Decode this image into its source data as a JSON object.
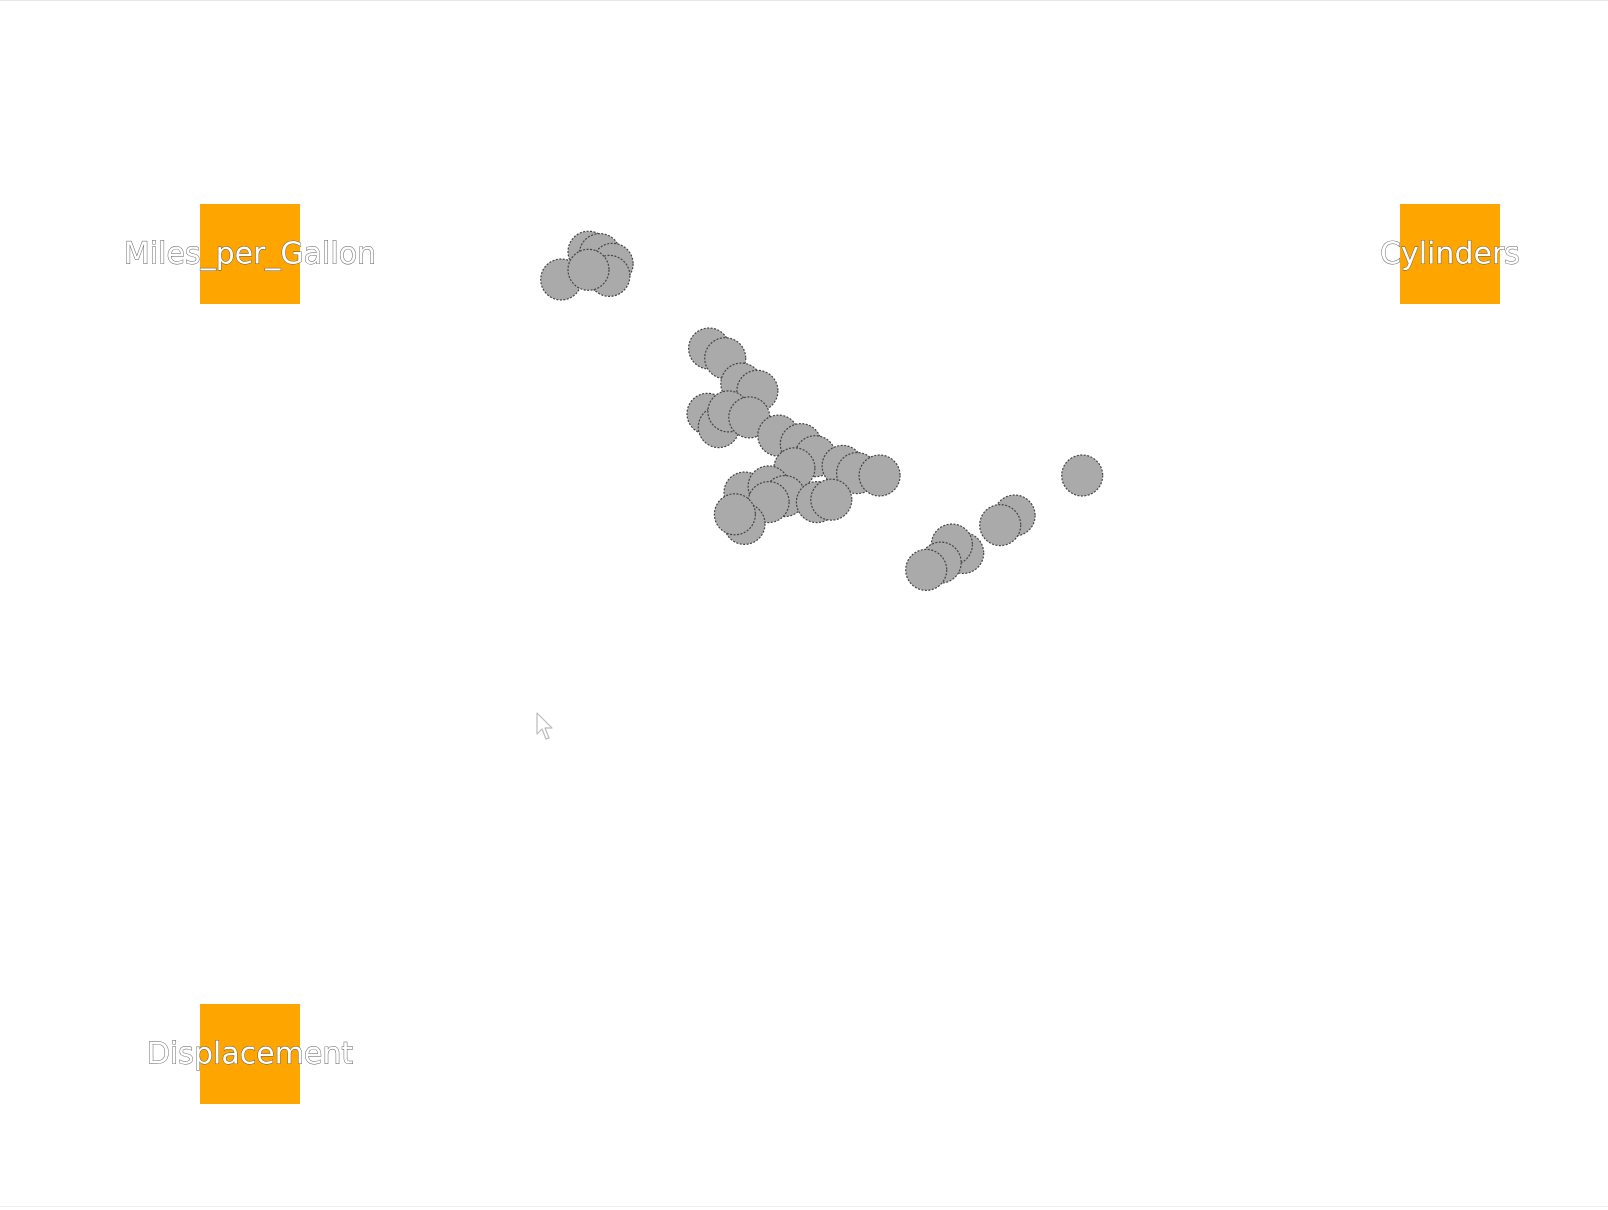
{
  "chart_data": {
    "type": "scatter",
    "projection": "radviz",
    "title": "",
    "anchors": [
      {
        "name": "Miles_per_Gallon",
        "corner": "top-left"
      },
      {
        "name": "Cylinders",
        "corner": "top-right"
      },
      {
        "name": "Displacement",
        "corner": "bottom-left"
      }
    ],
    "anchor_color": "#FFA500",
    "point_color": "#aaaaaa",
    "point_stroke": "#444444",
    "points": [
      {
        "x": 0.366,
        "y": 0.208
      },
      {
        "x": 0.373,
        "y": 0.21
      },
      {
        "x": 0.376,
        "y": 0.225
      },
      {
        "x": 0.381,
        "y": 0.218
      },
      {
        "x": 0.379,
        "y": 0.228
      },
      {
        "x": 0.349,
        "y": 0.231
      },
      {
        "x": 0.366,
        "y": 0.223
      },
      {
        "x": 0.441,
        "y": 0.288
      },
      {
        "x": 0.451,
        "y": 0.296
      },
      {
        "x": 0.461,
        "y": 0.317
      },
      {
        "x": 0.471,
        "y": 0.323
      },
      {
        "x": 0.44,
        "y": 0.342
      },
      {
        "x": 0.447,
        "y": 0.353
      },
      {
        "x": 0.453,
        "y": 0.34
      },
      {
        "x": 0.466,
        "y": 0.345
      },
      {
        "x": 0.484,
        "y": 0.36
      },
      {
        "x": 0.498,
        "y": 0.367
      },
      {
        "x": 0.507,
        "y": 0.377
      },
      {
        "x": 0.494,
        "y": 0.387
      },
      {
        "x": 0.524,
        "y": 0.385
      },
      {
        "x": 0.533,
        "y": 0.391
      },
      {
        "x": 0.547,
        "y": 0.393
      },
      {
        "x": 0.463,
        "y": 0.407
      },
      {
        "x": 0.478,
        "y": 0.402
      },
      {
        "x": 0.488,
        "y": 0.41
      },
      {
        "x": 0.478,
        "y": 0.415
      },
      {
        "x": 0.508,
        "y": 0.415
      },
      {
        "x": 0.517,
        "y": 0.413
      },
      {
        "x": 0.463,
        "y": 0.433
      },
      {
        "x": 0.457,
        "y": 0.425
      },
      {
        "x": 0.599,
        "y": 0.457
      },
      {
        "x": 0.592,
        "y": 0.45
      },
      {
        "x": 0.585,
        "y": 0.465
      },
      {
        "x": 0.576,
        "y": 0.471
      },
      {
        "x": 0.631,
        "y": 0.426
      },
      {
        "x": 0.622,
        "y": 0.434
      },
      {
        "x": 0.673,
        "y": 0.393
      }
    ]
  }
}
